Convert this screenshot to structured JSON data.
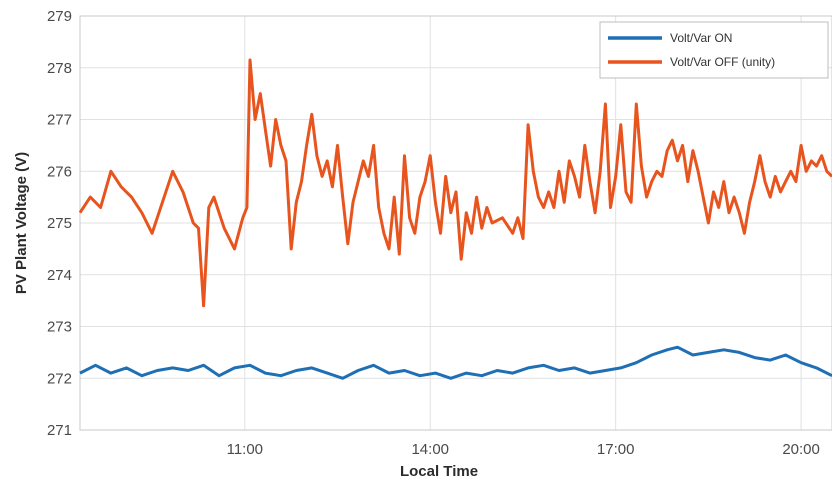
{
  "chart_data": {
    "type": "line",
    "title": "",
    "xlabel": "Local Time",
    "ylabel": "PV Plant Voltage (V)",
    "x_ticks": [
      "11:00",
      "14:00",
      "17:00",
      "20:00"
    ],
    "y_ticks": [
      271,
      272,
      273,
      274,
      275,
      276,
      277,
      278,
      279
    ],
    "xlim": [
      "08:20",
      "20:30"
    ],
    "ylim": [
      271,
      279
    ],
    "grid": true,
    "legend_position": "top-right",
    "series": [
      {
        "name": "Volt/Var ON",
        "color": "#1f6fb5",
        "points": [
          [
            "08:20",
            272.1
          ],
          [
            "08:35",
            272.25
          ],
          [
            "08:50",
            272.1
          ],
          [
            "09:05",
            272.2
          ],
          [
            "09:20",
            272.05
          ],
          [
            "09:35",
            272.15
          ],
          [
            "09:50",
            272.2
          ],
          [
            "10:05",
            272.15
          ],
          [
            "10:20",
            272.25
          ],
          [
            "10:35",
            272.05
          ],
          [
            "10:50",
            272.2
          ],
          [
            "11:05",
            272.25
          ],
          [
            "11:20",
            272.1
          ],
          [
            "11:35",
            272.05
          ],
          [
            "11:50",
            272.15
          ],
          [
            "12:05",
            272.2
          ],
          [
            "12:20",
            272.1
          ],
          [
            "12:35",
            272.0
          ],
          [
            "12:50",
            272.15
          ],
          [
            "13:05",
            272.25
          ],
          [
            "13:20",
            272.1
          ],
          [
            "13:35",
            272.15
          ],
          [
            "13:50",
            272.05
          ],
          [
            "14:05",
            272.1
          ],
          [
            "14:20",
            272.0
          ],
          [
            "14:35",
            272.1
          ],
          [
            "14:50",
            272.05
          ],
          [
            "15:05",
            272.15
          ],
          [
            "15:20",
            272.1
          ],
          [
            "15:35",
            272.2
          ],
          [
            "15:50",
            272.25
          ],
          [
            "16:05",
            272.15
          ],
          [
            "16:20",
            272.2
          ],
          [
            "16:35",
            272.1
          ],
          [
            "16:50",
            272.15
          ],
          [
            "17:05",
            272.2
          ],
          [
            "17:20",
            272.3
          ],
          [
            "17:35",
            272.45
          ],
          [
            "17:50",
            272.55
          ],
          [
            "18:00",
            272.6
          ],
          [
            "18:15",
            272.45
          ],
          [
            "18:30",
            272.5
          ],
          [
            "18:45",
            272.55
          ],
          [
            "19:00",
            272.5
          ],
          [
            "19:15",
            272.4
          ],
          [
            "19:30",
            272.35
          ],
          [
            "19:45",
            272.45
          ],
          [
            "20:00",
            272.3
          ],
          [
            "20:15",
            272.2
          ],
          [
            "20:30",
            272.05
          ]
        ]
      },
      {
        "name": "Volt/Var OFF (unity)",
        "color": "#e8541e",
        "points": [
          [
            "08:20",
            275.2
          ],
          [
            "08:30",
            275.5
          ],
          [
            "08:40",
            275.3
          ],
          [
            "08:50",
            276.0
          ],
          [
            "09:00",
            275.7
          ],
          [
            "09:10",
            275.5
          ],
          [
            "09:20",
            275.2
          ],
          [
            "09:30",
            274.8
          ],
          [
            "09:40",
            275.4
          ],
          [
            "09:50",
            276.0
          ],
          [
            "10:00",
            275.6
          ],
          [
            "10:10",
            275.0
          ],
          [
            "10:15",
            274.9
          ],
          [
            "10:20",
            273.4
          ],
          [
            "10:25",
            275.3
          ],
          [
            "10:30",
            275.5
          ],
          [
            "10:40",
            274.9
          ],
          [
            "10:50",
            274.5
          ],
          [
            "10:58",
            275.1
          ],
          [
            "11:02",
            275.3
          ],
          [
            "11:05",
            278.15
          ],
          [
            "11:10",
            277.0
          ],
          [
            "11:15",
            277.5
          ],
          [
            "11:20",
            276.8
          ],
          [
            "11:25",
            276.1
          ],
          [
            "11:30",
            277.0
          ],
          [
            "11:35",
            276.5
          ],
          [
            "11:40",
            276.2
          ],
          [
            "11:45",
            274.5
          ],
          [
            "11:50",
            275.4
          ],
          [
            "11:55",
            275.8
          ],
          [
            "12:00",
            276.5
          ],
          [
            "12:05",
            277.1
          ],
          [
            "12:10",
            276.3
          ],
          [
            "12:15",
            275.9
          ],
          [
            "12:20",
            276.2
          ],
          [
            "12:25",
            275.7
          ],
          [
            "12:30",
            276.5
          ],
          [
            "12:35",
            275.5
          ],
          [
            "12:40",
            274.6
          ],
          [
            "12:45",
            275.4
          ],
          [
            "12:50",
            275.8
          ],
          [
            "12:55",
            276.2
          ],
          [
            "13:00",
            275.9
          ],
          [
            "13:05",
            276.5
          ],
          [
            "13:10",
            275.3
          ],
          [
            "13:15",
            274.8
          ],
          [
            "13:20",
            274.5
          ],
          [
            "13:25",
            275.5
          ],
          [
            "13:30",
            274.4
          ],
          [
            "13:35",
            276.3
          ],
          [
            "13:40",
            275.1
          ],
          [
            "13:45",
            274.8
          ],
          [
            "13:50",
            275.5
          ],
          [
            "13:55",
            275.8
          ],
          [
            "14:00",
            276.3
          ],
          [
            "14:05",
            275.4
          ],
          [
            "14:10",
            274.8
          ],
          [
            "14:15",
            275.9
          ],
          [
            "14:20",
            275.2
          ],
          [
            "14:25",
            275.6
          ],
          [
            "14:30",
            274.3
          ],
          [
            "14:35",
            275.2
          ],
          [
            "14:40",
            274.8
          ],
          [
            "14:45",
            275.5
          ],
          [
            "14:50",
            274.9
          ],
          [
            "14:55",
            275.3
          ],
          [
            "15:00",
            275.0
          ],
          [
            "15:10",
            275.1
          ],
          [
            "15:20",
            274.8
          ],
          [
            "15:25",
            275.1
          ],
          [
            "15:30",
            274.7
          ],
          [
            "15:35",
            276.9
          ],
          [
            "15:40",
            276.0
          ],
          [
            "15:45",
            275.5
          ],
          [
            "15:50",
            275.3
          ],
          [
            "15:55",
            275.6
          ],
          [
            "16:00",
            275.3
          ],
          [
            "16:05",
            276.0
          ],
          [
            "16:10",
            275.4
          ],
          [
            "16:15",
            276.2
          ],
          [
            "16:20",
            275.9
          ],
          [
            "16:25",
            275.5
          ],
          [
            "16:30",
            276.5
          ],
          [
            "16:35",
            275.8
          ],
          [
            "16:40",
            275.2
          ],
          [
            "16:45",
            276.0
          ],
          [
            "16:50",
            277.3
          ],
          [
            "16:55",
            275.3
          ],
          [
            "17:00",
            275.9
          ],
          [
            "17:05",
            276.9
          ],
          [
            "17:10",
            275.6
          ],
          [
            "17:15",
            275.4
          ],
          [
            "17:20",
            277.3
          ],
          [
            "17:25",
            276.1
          ],
          [
            "17:30",
            275.5
          ],
          [
            "17:35",
            275.8
          ],
          [
            "17:40",
            276.0
          ],
          [
            "17:45",
            275.9
          ],
          [
            "17:50",
            276.4
          ],
          [
            "17:55",
            276.6
          ],
          [
            "18:00",
            276.2
          ],
          [
            "18:05",
            276.5
          ],
          [
            "18:10",
            275.8
          ],
          [
            "18:15",
            276.4
          ],
          [
            "18:20",
            276.0
          ],
          [
            "18:25",
            275.5
          ],
          [
            "18:30",
            275.0
          ],
          [
            "18:35",
            275.6
          ],
          [
            "18:40",
            275.3
          ],
          [
            "18:45",
            275.8
          ],
          [
            "18:50",
            275.2
          ],
          [
            "18:55",
            275.5
          ],
          [
            "19:00",
            275.2
          ],
          [
            "19:05",
            274.8
          ],
          [
            "19:10",
            275.4
          ],
          [
            "19:15",
            275.8
          ],
          [
            "19:20",
            276.3
          ],
          [
            "19:25",
            275.8
          ],
          [
            "19:30",
            275.5
          ],
          [
            "19:35",
            275.9
          ],
          [
            "19:40",
            275.6
          ],
          [
            "19:45",
            275.8
          ],
          [
            "19:50",
            276.0
          ],
          [
            "19:55",
            275.8
          ],
          [
            "20:00",
            276.5
          ],
          [
            "20:05",
            276.0
          ],
          [
            "20:10",
            276.2
          ],
          [
            "20:15",
            276.1
          ],
          [
            "20:20",
            276.3
          ],
          [
            "20:25",
            276.0
          ],
          [
            "20:30",
            275.9
          ]
        ]
      }
    ]
  }
}
